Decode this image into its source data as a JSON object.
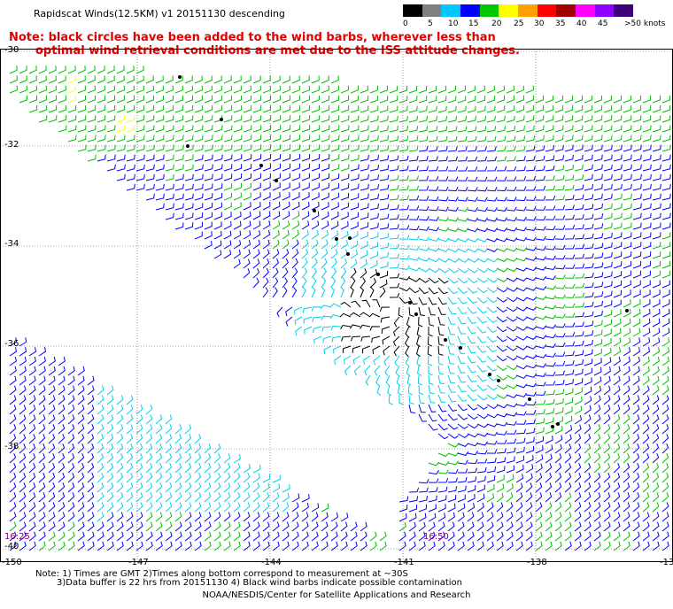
{
  "header": {
    "title": "Rapidscat Winds(12.5KM) v1 20151130 descending",
    "note_line1": "Note: black circles have been added to the wind barbs, wherever less than",
    "note_line2": "optimal wind retrieval conditions are met due to the ISS attitude changes."
  },
  "colorbar": {
    "unit": "knots",
    "labels": [
      "0",
      "5",
      "10",
      "15",
      "20",
      "25",
      "30",
      "35",
      "40",
      "45",
      ">50 knots"
    ],
    "colors": [
      "#000000",
      "#7f7f7f",
      "#00c8ff",
      "#0000ff",
      "#00c800",
      "#ffff00",
      "#ffa000",
      "#ff0000",
      "#a00000",
      "#ff00ff",
      "#8c00ff",
      "#3c0078"
    ]
  },
  "map": {
    "lat_labels": [
      "-30",
      "-32",
      "-34",
      "-36",
      "-38",
      "-40"
    ],
    "lon_labels": [
      "-150",
      "-147",
      "-144",
      "-141",
      "-138",
      "-13"
    ],
    "time_labels": [
      "16:25",
      "16:50"
    ],
    "speed_colors": {
      "calm_black": "#000000",
      "light_cyan": "#00d0e8",
      "moderate_blue": "#0000ff",
      "fresh_green": "#00c000",
      "strong_yellow": "#ffff00"
    }
  },
  "footer": {
    "note_line1": "Note: 1) Times are GMT 2)Times along bottom correspond to measurement at ~30S",
    "note_line2": "3)Data buffer is 22 hrs from 20151130 4) Black wind barbs indicate possible contamination",
    "credit": "NOAA/NESDIS/Center for Satellite Applications and Research"
  }
}
